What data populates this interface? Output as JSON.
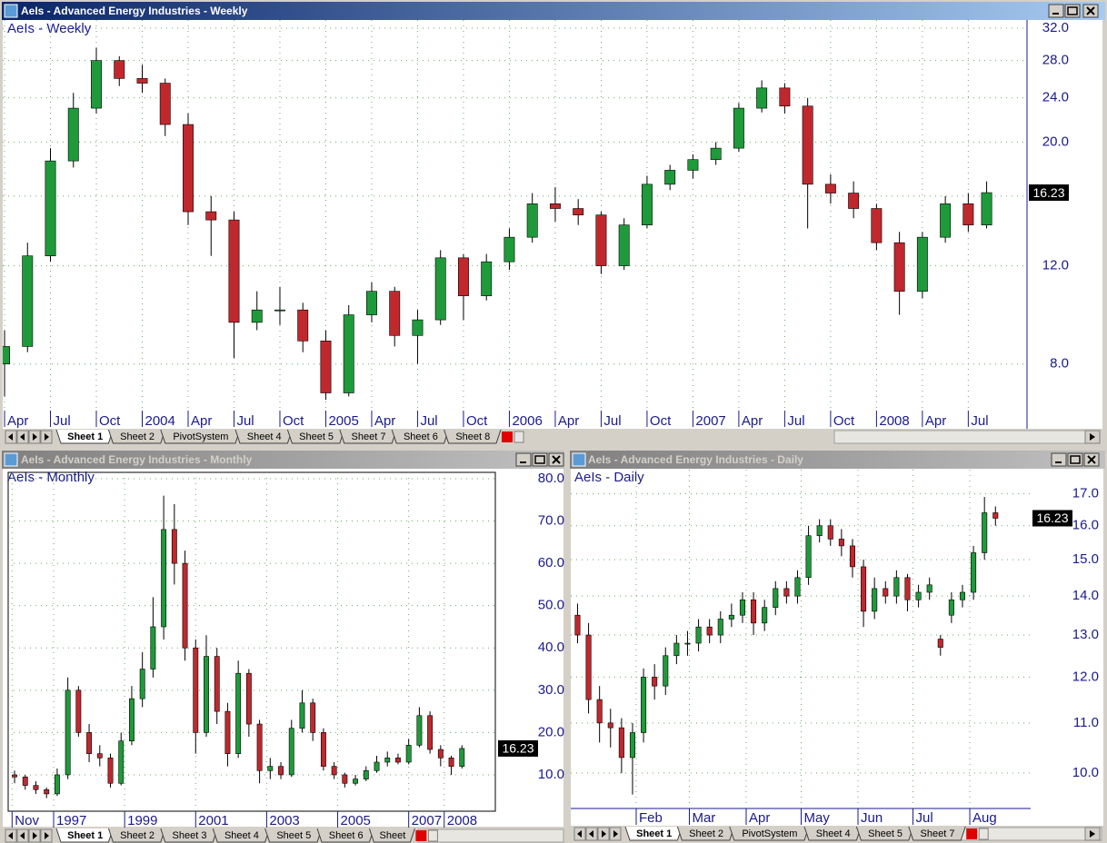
{
  "windows": [
    {
      "title": "AeIs - Advanced Energy Industries - Weekly",
      "tabs": [
        "Sheet 1",
        "Sheet 2",
        "PivotSystem",
        "Sheet 4",
        "Sheet 5",
        "Sheet 7",
        "Sheet 6",
        "Sheet 8"
      ]
    },
    {
      "title": "AeIs - Advanced Energy Industries - Monthly",
      "tabs": [
        "Sheet 1",
        "Sheet 2",
        "Sheet 3",
        "Sheet 4",
        "Sheet 5",
        "Sheet 6",
        "Sheet"
      ]
    },
    {
      "title": "AeIs - Advanced Energy Industries - Daily",
      "tabs": [
        "Sheet 1",
        "Sheet 2",
        "PivotSystem",
        "Sheet 4",
        "Sheet 5",
        "Sheet 7"
      ]
    }
  ],
  "chart_data": [
    {
      "type": "candlestick",
      "title": "AeIs - Weekly",
      "x": [
        2003.25,
        2003.375,
        2003.5,
        2003.625,
        2003.75,
        2003.875,
        2004,
        2004.125,
        2004.25,
        2004.375,
        2004.5,
        2004.625,
        2004.75,
        2004.875,
        2005,
        2005.125,
        2005.25,
        2005.375,
        2005.5,
        2005.625,
        2005.75,
        2005.875,
        2006,
        2006.125,
        2006.25,
        2006.375,
        2006.5,
        2006.625,
        2006.75,
        2006.875,
        2007,
        2007.125,
        2007.25,
        2007.375,
        2007.5,
        2007.625,
        2007.75,
        2007.875,
        2008,
        2008.125,
        2008.25,
        2008.375,
        2008.5,
        2008.6
      ],
      "open": [
        8.0,
        8.6,
        12.5,
        18.5,
        23,
        28,
        26,
        25.5,
        21.5,
        15,
        14.5,
        9.5,
        10,
        10,
        8.8,
        7.1,
        9.8,
        10.8,
        9,
        9.6,
        12.4,
        10.6,
        12.2,
        13.5,
        15.5,
        15.2,
        14.8,
        12,
        14.2,
        16.8,
        17.8,
        18.6,
        19.5,
        23,
        25,
        23.2,
        16.8,
        16.2,
        15.2,
        13.2,
        10.8,
        13.5,
        15.5,
        14.2
      ],
      "high": [
        9.2,
        13.2,
        19.5,
        24.5,
        29.5,
        28.5,
        27.5,
        26,
        22.5,
        16,
        15,
        10.8,
        11,
        10.3,
        9.2,
        10.2,
        11.2,
        11,
        10,
        12.8,
        12.6,
        12.6,
        14,
        16.2,
        16.6,
        15.8,
        15,
        14.6,
        17.4,
        18.2,
        19,
        20,
        23.5,
        25.8,
        25.5,
        24,
        17.5,
        17,
        15.5,
        13.8,
        13.8,
        16,
        16.2,
        17
      ],
      "low": [
        7.0,
        8.4,
        12.2,
        18,
        22.5,
        25.2,
        24.5,
        20.5,
        14.2,
        12.5,
        8.2,
        9.2,
        9.4,
        8.4,
        6.9,
        7,
        9.5,
        8.6,
        8,
        9.4,
        9.6,
        10.4,
        11.8,
        13.2,
        14.4,
        14.2,
        11.6,
        11.8,
        14,
        16.4,
        17.2,
        18.2,
        19.2,
        22.6,
        22.5,
        14,
        15.5,
        14.6,
        12.8,
        9.8,
        10.5,
        13.2,
        13.8,
        14
      ],
      "close": [
        8.6,
        12.5,
        18.5,
        23,
        28,
        26,
        25.5,
        21.5,
        15,
        14.5,
        9.5,
        10,
        10,
        8.8,
        7.1,
        9.8,
        10.8,
        9,
        9.6,
        12.4,
        10.6,
        12.2,
        13.5,
        15.5,
        15.2,
        14.8,
        12,
        14.2,
        16.8,
        17.8,
        18.6,
        19.5,
        23,
        25,
        23.2,
        16.8,
        16.2,
        15.2,
        13.2,
        10.8,
        13.5,
        15.5,
        14.2,
        16.23
      ],
      "xlim": [
        2003.24,
        2008.82
      ],
      "xticks": [
        {
          "value": 2003.25,
          "label": "Apr"
        },
        {
          "value": 2003.5,
          "label": "Jul"
        },
        {
          "value": 2003.75,
          "label": "Oct"
        },
        2004,
        {
          "value": 2004.25,
          "label": "Apr"
        },
        {
          "value": 2004.5,
          "label": "Jul"
        },
        {
          "value": 2004.75,
          "label": "Oct"
        },
        2005,
        {
          "value": 2005.25,
          "label": "Apr"
        },
        {
          "value": 2005.5,
          "label": "Jul"
        },
        {
          "value": 2005.75,
          "label": "Oct"
        },
        2006,
        {
          "value": 2006.25,
          "label": "Apr"
        },
        {
          "value": 2006.5,
          "label": "Jul"
        },
        {
          "value": 2006.75,
          "label": "Oct"
        },
        2007,
        {
          "value": 2007.25,
          "label": "Apr"
        },
        {
          "value": 2007.5,
          "label": "Jul"
        },
        {
          "value": 2007.75,
          "label": "Oct"
        },
        2008,
        {
          "value": 2008.25,
          "label": "Apr"
        },
        {
          "value": 2008.5,
          "label": "Jul"
        }
      ],
      "ylim": [
        6.6,
        33.1
      ],
      "yticks": [
        {
          "value": 8,
          "label": "8.0"
        },
        {
          "value": 12,
          "label": "12.0"
        },
        {
          "value": 16,
          "label": "16.0"
        },
        {
          "value": 20,
          "label": "20.0"
        },
        {
          "value": 24,
          "label": "24.0"
        },
        {
          "value": 28,
          "label": "28.0"
        },
        {
          "value": 32,
          "label": "32.0"
        }
      ],
      "log_scale": true,
      "grid": true,
      "up_color": "#1f9a3a",
      "down_color": "#c0282d"
    },
    {
      "type": "candlestick",
      "title": "AeIs - Monthly",
      "x": [
        1995.9,
        1996.2,
        1996.5,
        1996.8,
        1997.1,
        1997.4,
        1997.7,
        1998,
        1998.3,
        1998.6,
        1998.9,
        1999.2,
        1999.5,
        1999.8,
        2000.1,
        2000.4,
        2000.7,
        2001,
        2001.3,
        2001.6,
        2001.9,
        2002.2,
        2002.5,
        2002.8,
        2003.1,
        2003.4,
        2003.7,
        2004,
        2004.3,
        2004.6,
        2004.9,
        2005.2,
        2005.5,
        2005.8,
        2006.1,
        2006.4,
        2006.7,
        2007,
        2007.3,
        2007.6,
        2007.9,
        2008.2,
        2008.5
      ],
      "open": [
        10,
        9.5,
        7.5,
        6.5,
        5.5,
        10,
        30,
        20,
        15,
        14,
        8,
        18,
        28,
        35,
        45,
        68,
        60,
        40,
        20,
        38,
        25,
        15,
        34,
        22,
        11,
        12,
        10,
        21,
        27,
        20,
        12,
        10,
        8,
        9,
        11,
        13,
        14,
        13,
        17,
        24,
        16,
        14,
        12
      ],
      "high": [
        11,
        10,
        8.5,
        7,
        11.5,
        33,
        31,
        22,
        17,
        15,
        20,
        31,
        39,
        52,
        76,
        74,
        63,
        42,
        43,
        40,
        27,
        37,
        35,
        23,
        14,
        13,
        23,
        30,
        28,
        21,
        13,
        10.5,
        10,
        12,
        14.5,
        15.5,
        15,
        18.5,
        26,
        25,
        17,
        14.5,
        17
      ],
      "low": [
        8,
        6.5,
        5.5,
        4.5,
        5,
        9,
        19,
        13,
        12,
        7,
        7.5,
        17,
        26,
        33,
        42,
        55,
        37,
        15,
        19,
        22,
        12,
        14,
        19,
        8,
        9,
        9,
        9.5,
        20,
        18,
        11,
        9,
        7,
        7.5,
        8.5,
        10.5,
        12,
        12.5,
        12.5,
        16.5,
        15,
        12,
        10,
        11.5
      ],
      "close": [
        9.5,
        7.5,
        6.5,
        5.5,
        10,
        30,
        20,
        15,
        14,
        8,
        18,
        28,
        35,
        45,
        68,
        60,
        40,
        20,
        38,
        25,
        15,
        34,
        22,
        11,
        12,
        10,
        21,
        27,
        20,
        12,
        10,
        8,
        9,
        11,
        13,
        14,
        13,
        17,
        24,
        16,
        14,
        12,
        16.23
      ],
      "xlim": [
        1995.72,
        2009.44
      ],
      "xticks": [
        {
          "value": 1995.83,
          "label": "Nov"
        },
        1997,
        1999,
        2001,
        2003,
        2005,
        2007,
        2008
      ],
      "ylim": [
        1.4,
        81.5
      ],
      "yticks": [
        {
          "value": 10,
          "label": "10.0"
        },
        {
          "value": 20,
          "label": "20.0"
        },
        {
          "value": 30,
          "label": "30.0"
        },
        {
          "value": 40,
          "label": "40.0"
        },
        {
          "value": 50,
          "label": "50.0"
        },
        {
          "value": 60,
          "label": "60.0"
        },
        {
          "value": 70,
          "label": "70.0"
        },
        {
          "value": 80,
          "label": "80.0"
        }
      ],
      "log_scale": false,
      "grid": true,
      "up_color": "#1f9a3a",
      "down_color": "#c0282d"
    },
    {
      "type": "candlestick",
      "title": "AeIs - Daily",
      "x": [
        0,
        6,
        12,
        18,
        24,
        30,
        36,
        42,
        48,
        54,
        60,
        66,
        72,
        78,
        84,
        90,
        96,
        102,
        108,
        114,
        120,
        126,
        132,
        138,
        144,
        150,
        156,
        162,
        168,
        174,
        180,
        186,
        192,
        198,
        204,
        210,
        216,
        222,
        228
      ],
      "open": [
        13.5,
        13.0,
        11.5,
        11.0,
        10.9,
        10.3,
        10.8,
        12.0,
        11.8,
        12.5,
        12.8,
        12.8,
        13.2,
        13.0,
        13.4,
        13.5,
        13.9,
        13.3,
        13.7,
        14.2,
        14.0,
        14.5,
        15.7,
        16.0,
        15.6,
        15.4,
        14.8,
        13.6,
        14.2,
        14.0,
        14.5,
        13.9,
        14.1,
        12.9,
        13.5,
        13.9,
        14.1,
        15.2,
        16.4
      ],
      "high": [
        13.8,
        13.3,
        11.8,
        11.3,
        11.1,
        11.0,
        12.2,
        12.3,
        12.7,
        13.0,
        13.1,
        13.4,
        13.4,
        13.6,
        13.8,
        14.1,
        14.1,
        13.9,
        14.4,
        14.4,
        14.7,
        16.0,
        16.2,
        16.2,
        15.9,
        15.6,
        15.0,
        14.5,
        14.4,
        14.7,
        14.6,
        14.3,
        14.5,
        13.0,
        14.1,
        14.3,
        15.4,
        16.9,
        16.6
      ],
      "low": [
        12.8,
        11.2,
        10.6,
        10.5,
        10.0,
        9.6,
        10.6,
        11.5,
        11.6,
        12.3,
        12.5,
        12.6,
        12.8,
        12.8,
        13.2,
        13.3,
        13.0,
        13.1,
        13.5,
        13.8,
        13.8,
        14.3,
        15.5,
        15.4,
        15.1,
        14.5,
        13.2,
        13.4,
        13.8,
        13.8,
        13.6,
        13.7,
        13.9,
        12.5,
        13.3,
        13.7,
        13.9,
        15.0,
        16.0
      ],
      "close": [
        13.0,
        11.5,
        11.0,
        10.9,
        10.3,
        10.8,
        12.0,
        11.8,
        12.5,
        12.8,
        12.8,
        13.2,
        13.0,
        13.4,
        13.5,
        13.9,
        13.3,
        13.7,
        14.2,
        14.0,
        14.5,
        15.7,
        16.0,
        15.6,
        15.4,
        14.8,
        13.6,
        14.2,
        14.0,
        14.5,
        13.9,
        14.1,
        14.3,
        12.7,
        13.9,
        14.1,
        15.2,
        16.4,
        16.23
      ],
      "xlim": [
        -3.7,
        247.2
      ],
      "xticks": [
        {
          "value": 32,
          "label": "Feb"
        },
        {
          "value": 61,
          "label": "Mar"
        },
        {
          "value": 92,
          "label": "Apr"
        },
        {
          "value": 122,
          "label": "May"
        },
        {
          "value": 153,
          "label": "Jun"
        },
        {
          "value": 183,
          "label": "Jul"
        },
        {
          "value": 214,
          "label": "Aug"
        }
      ],
      "ylim": [
        9.35,
        17.8
      ],
      "yticks": [
        {
          "value": 10,
          "label": "10.0"
        },
        {
          "value": 11,
          "label": "11.0"
        },
        {
          "value": 12,
          "label": "12.0"
        },
        {
          "value": 13,
          "label": "13.0"
        },
        {
          "value": 14,
          "label": "14.0"
        },
        {
          "value": 15,
          "label": "15.0"
        },
        {
          "value": 16,
          "label": "16.0"
        },
        {
          "value": 17,
          "label": "17.0"
        }
      ],
      "log_scale": true,
      "grid": true,
      "up_color": "#1f9a3a",
      "down_color": "#c0282d"
    }
  ]
}
